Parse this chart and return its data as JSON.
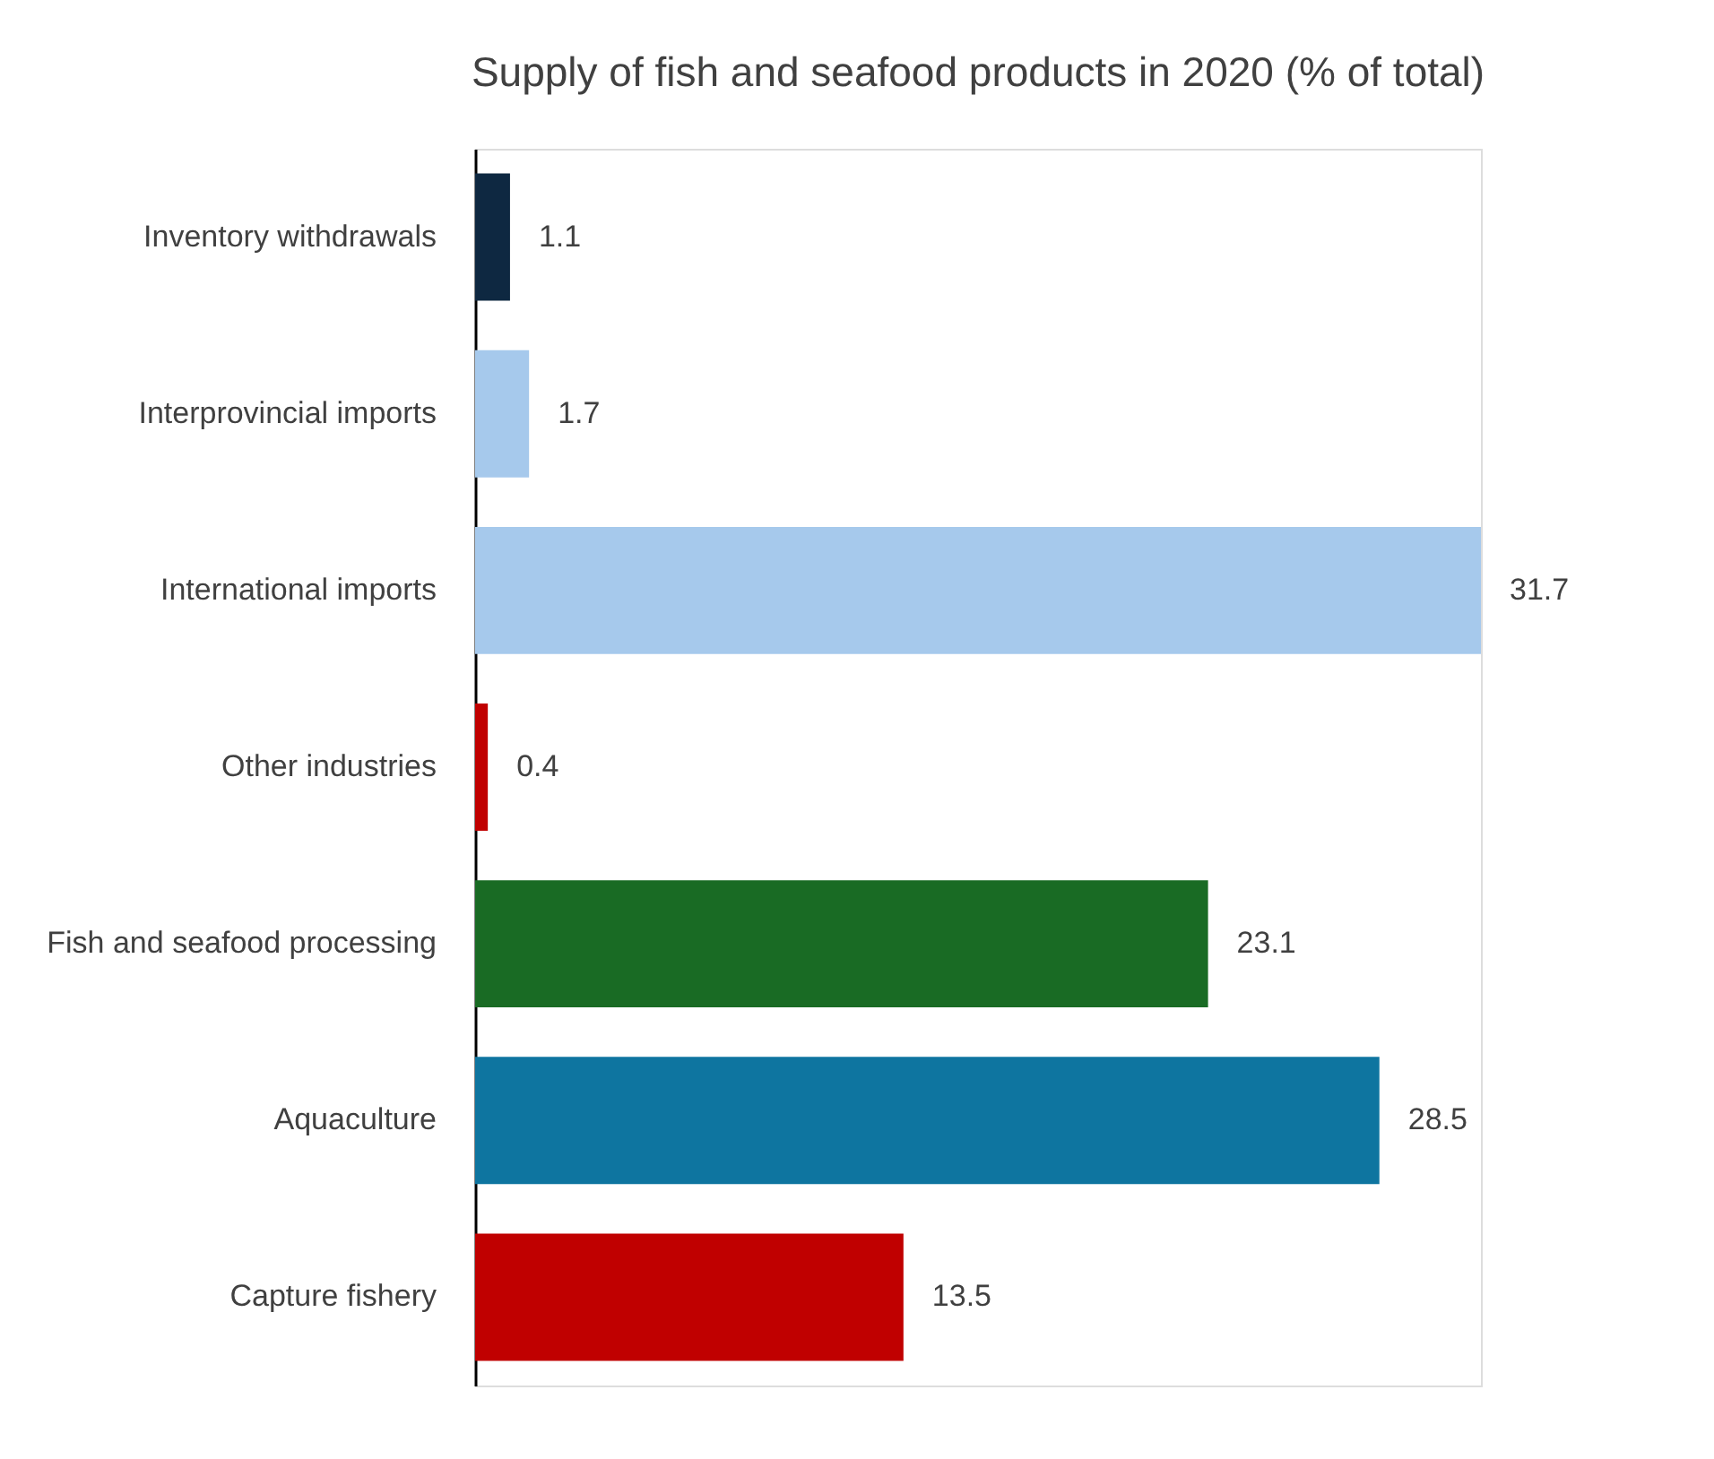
{
  "chart_data": {
    "type": "bar",
    "orientation": "horizontal",
    "title": "Supply of fish and seafood products in 2020 (% of total)",
    "categories": [
      "Inventory withdrawals",
      "Interprovincial imports",
      "International imports",
      "Other industries",
      "Fish and seafood processing",
      "Aquaculture",
      "Capture fishery"
    ],
    "values": [
      1.1,
      1.7,
      31.7,
      0.4,
      23.1,
      28.5,
      13.5
    ],
    "colors": [
      "#0e2841",
      "#a6c9ec",
      "#a6c9ec",
      "#c00000",
      "#196b24",
      "#0e75a0",
      "#c00000"
    ],
    "data_labels": true
  }
}
